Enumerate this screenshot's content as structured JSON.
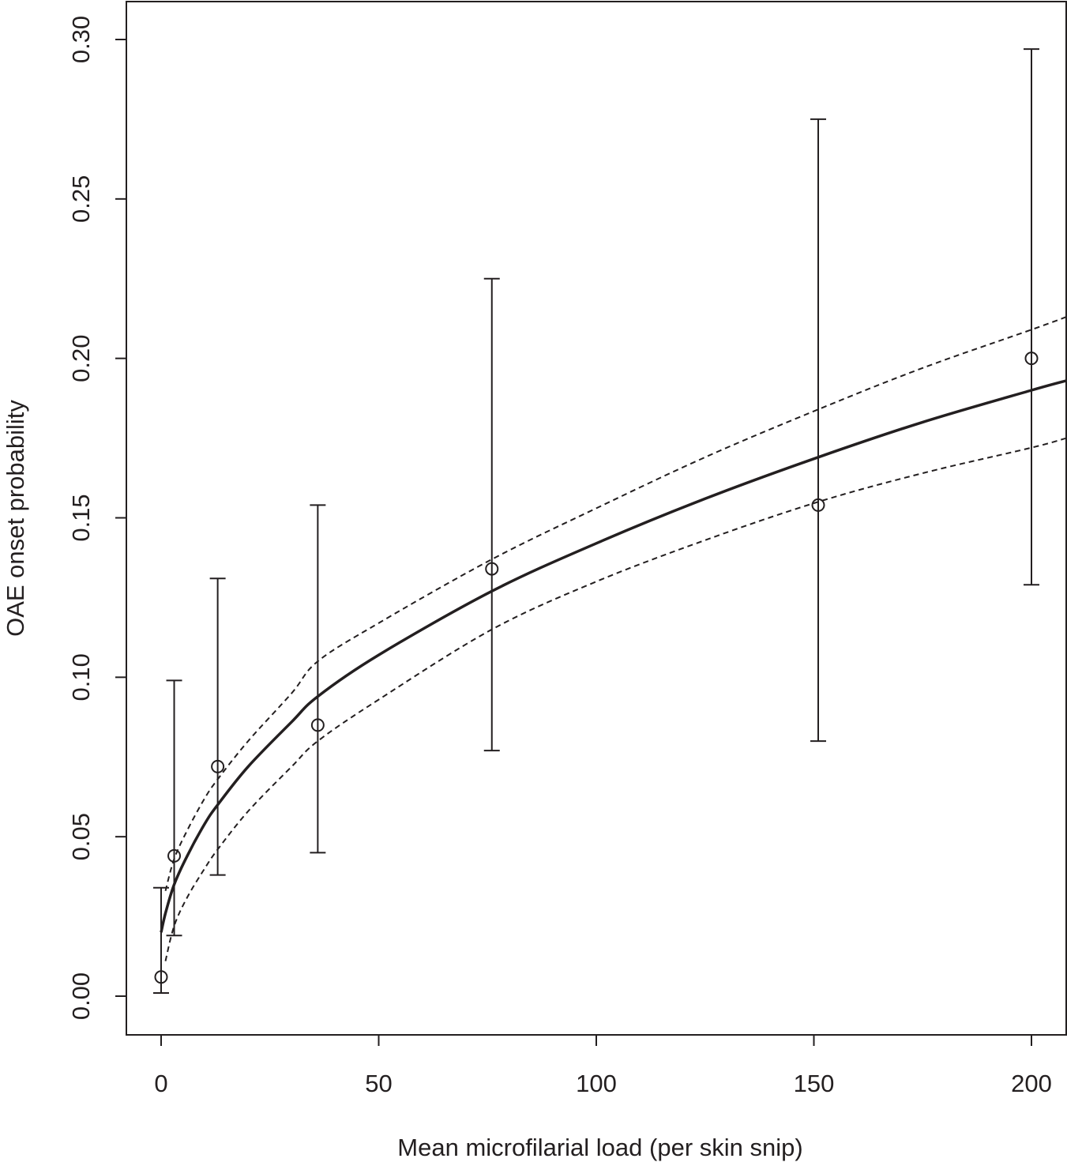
{
  "chart_data": {
    "type": "scatter",
    "xlabel": "Mean microfilarial load (per skin snip)",
    "ylabel": "OAE onset probability",
    "xlim": [
      -8,
      208
    ],
    "ylim": [
      -0.012,
      0.312
    ],
    "x_ticks": [
      0,
      50,
      100,
      150,
      200
    ],
    "x_tick_labels": [
      "0",
      "50",
      "100",
      "150",
      "200"
    ],
    "y_ticks": [
      0.0,
      0.05,
      0.1,
      0.15,
      0.2,
      0.25,
      0.3
    ],
    "y_tick_labels": [
      "0.00",
      "0.05",
      "0.10",
      "0.15",
      "0.20",
      "0.25",
      "0.30"
    ],
    "grid": false,
    "legend": "none",
    "colors": {
      "ink": "#231f20",
      "background": "#ffffff"
    },
    "points": [
      {
        "x": 0,
        "y": 0.006,
        "lower": 0.001,
        "upper": 0.034
      },
      {
        "x": 3,
        "y": 0.044,
        "lower": 0.019,
        "upper": 0.099
      },
      {
        "x": 13,
        "y": 0.072,
        "lower": 0.038,
        "upper": 0.131
      },
      {
        "x": 36,
        "y": 0.085,
        "lower": 0.045,
        "upper": 0.154
      },
      {
        "x": 76,
        "y": 0.134,
        "lower": 0.077,
        "upper": 0.225
      },
      {
        "x": 151,
        "y": 0.154,
        "lower": 0.08,
        "upper": 0.275
      },
      {
        "x": 200,
        "y": 0.2,
        "lower": 0.129,
        "upper": 0.297
      }
    ],
    "fitted_curve": {
      "style": "solid",
      "x": [
        0,
        1,
        3,
        6,
        10,
        13,
        20,
        30,
        36,
        50,
        76,
        100,
        125,
        151,
        175,
        200,
        208
      ],
      "y": [
        0.02,
        0.026,
        0.035,
        0.044,
        0.054,
        0.06,
        0.072,
        0.086,
        0.094,
        0.107,
        0.127,
        0.142,
        0.156,
        0.169,
        0.18,
        0.19,
        0.193
      ]
    },
    "confidence_band": {
      "style": "dashed",
      "x": [
        1,
        3,
        6,
        10,
        13,
        20,
        30,
        36,
        50,
        76,
        100,
        125,
        151,
        175,
        200,
        208
      ],
      "upper": [
        0.033,
        0.043,
        0.052,
        0.062,
        0.068,
        0.08,
        0.095,
        0.105,
        0.117,
        0.137,
        0.153,
        0.169,
        0.184,
        0.197,
        0.209,
        0.213
      ],
      "lower": [
        0.011,
        0.022,
        0.031,
        0.04,
        0.046,
        0.058,
        0.072,
        0.08,
        0.093,
        0.115,
        0.13,
        0.143,
        0.155,
        0.164,
        0.172,
        0.175
      ]
    }
  }
}
